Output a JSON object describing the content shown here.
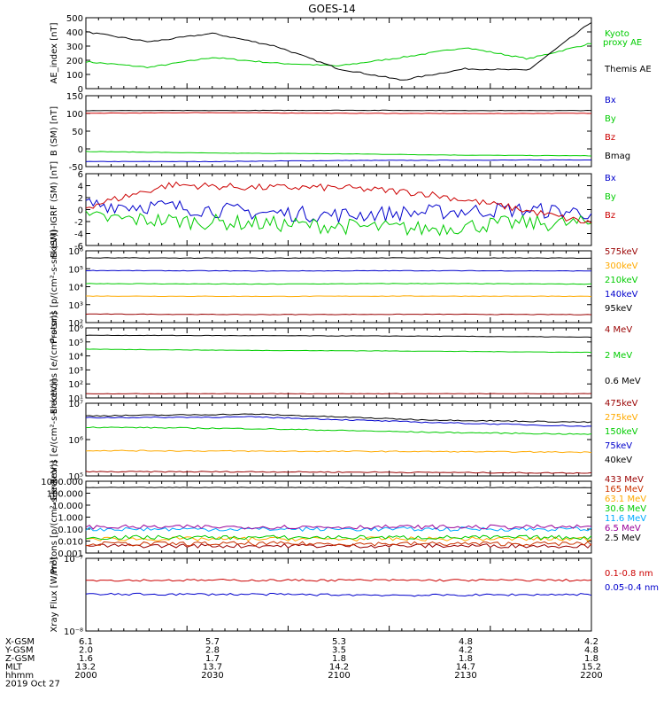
{
  "title": "GOES-14",
  "chart_data": [
    {
      "type": "line",
      "ylabel": "AE_index [nT]",
      "yticks": [
        "500",
        "400",
        "300",
        "200",
        "100",
        "0"
      ],
      "ylim": [
        0,
        500
      ],
      "x": [
        2000,
        2015,
        2030,
        2045,
        2100,
        2115,
        2130,
        2145,
        2200
      ],
      "series": [
        {
          "name": "Kyoto proxy AE",
          "color": "#00cc00",
          "values": [
            190,
            150,
            220,
            180,
            160,
            220,
            290,
            210,
            320
          ]
        },
        {
          "name": "Themis AE",
          "color": "#000000",
          "values": [
            400,
            330,
            390,
            300,
            140,
            60,
            140,
            130,
            470
          ]
        }
      ]
    },
    {
      "type": "line",
      "ylabel": "B (SM) [nT]",
      "yticks": [
        "150",
        "100",
        "50",
        "0",
        "-50"
      ],
      "ylim": [
        -60,
        150
      ],
      "series": [
        {
          "name": "Bx",
          "color": "#0000cc",
          "values": [
            -45,
            -45,
            -42,
            -41,
            -40
          ]
        },
        {
          "name": "By",
          "color": "#00cc00",
          "values": [
            -15,
            -20,
            -22,
            -26,
            -28
          ]
        },
        {
          "name": "Bz",
          "color": "#cc0000",
          "values": [
            98,
            100,
            98,
            97,
            98
          ]
        },
        {
          "name": "Bmag",
          "color": "#000000",
          "values": [
            106,
            106,
            107,
            106,
            106
          ]
        }
      ]
    },
    {
      "type": "line",
      "ylabel": "B (SM)-IGRF (SM) [nT]",
      "yticks": [
        "6",
        "4",
        "2",
        "0",
        "-2",
        "-4",
        "-6"
      ],
      "ylim": [
        -7,
        6
      ],
      "series": [
        {
          "name": "Bx",
          "color": "#0000cc",
          "values": [
            0.5,
            0,
            -1,
            -1.5,
            -1,
            -0.5,
            -1
          ]
        },
        {
          "name": "By",
          "color": "#00cc00",
          "values": [
            -2,
            -2.5,
            -3,
            -3.5,
            -4,
            -3,
            -3
          ]
        },
        {
          "name": "Bz",
          "color": "#cc0000",
          "values": [
            0,
            4,
            3.5,
            3.5,
            2.5,
            0,
            -3
          ]
        }
      ]
    },
    {
      "type": "line",
      "ylabel": "Protons [p/(cm²-s-sr-keV)]",
      "yticks": [
        "10⁶",
        "10⁵",
        "10⁴",
        "10³",
        "10²"
      ],
      "log": true,
      "series": [
        {
          "name": "575keV",
          "color": "#990000",
          "values": [
            300,
            280,
            290,
            280
          ]
        },
        {
          "name": "300keV",
          "color": "#ffaa00",
          "values": [
            3000,
            2900,
            3000,
            2900
          ]
        },
        {
          "name": "210keV",
          "color": "#00cc00",
          "values": [
            15000,
            14000,
            15000,
            14000
          ]
        },
        {
          "name": "140keV",
          "color": "#0000cc",
          "values": [
            80000,
            75000,
            78000,
            75000
          ]
        },
        {
          "name": "95keV",
          "color": "#000000",
          "values": [
            400000,
            390000,
            400000,
            390000
          ]
        }
      ]
    },
    {
      "type": "line",
      "ylabel": "Electrons [e/(cm²-s-sr)]",
      "yticks": [
        "10⁶",
        "10⁵",
        "10⁴",
        "10³",
        "10²",
        "10¹"
      ],
      "log": true,
      "series": [
        {
          "name": "4 MeV",
          "color": "#990000",
          "values": [
            20,
            20,
            20,
            20
          ]
        },
        {
          "name": "2 MeV",
          "color": "#00cc00",
          "values": [
            30000,
            25000,
            22000,
            18000
          ]
        },
        {
          "name": "0.6 MeV",
          "color": "#000000",
          "values": [
            300000,
            280000,
            260000,
            220000
          ]
        }
      ]
    },
    {
      "type": "line",
      "ylabel": "Electrons [e/(cm²-s-sr-keV)]",
      "yticks": [
        "10⁷",
        "10⁶",
        "10⁵"
      ],
      "log": true,
      "series": [
        {
          "name": "475keV",
          "color": "#990000",
          "values": [
            130000,
            130000,
            125000,
            120000
          ]
        },
        {
          "name": "275keV",
          "color": "#ffaa00",
          "values": [
            500000,
            480000,
            470000,
            450000
          ]
        },
        {
          "name": "150keV",
          "color": "#00cc00",
          "values": [
            2200000,
            2000000,
            1600000,
            1400000
          ]
        },
        {
          "name": "75keV",
          "color": "#0000cc",
          "values": [
            4000000,
            4200000,
            3000000,
            2300000
          ]
        },
        {
          "name": "40keV",
          "color": "#000000",
          "values": [
            4500000,
            5000000,
            3500000,
            3000000
          ]
        }
      ]
    },
    {
      "type": "line",
      "ylabel": "Protons [p/(cm²-s-sr-keV)]",
      "yticks": [
        "1000.000",
        "100.000",
        "10.000",
        "1.000",
        "0.100",
        "0.010",
        "0.001"
      ],
      "log": true,
      "series": [
        {
          "name": "433 MeV",
          "color": "#990000",
          "values": [
            0.004,
            0.004,
            0.004,
            0.004
          ]
        },
        {
          "name": "165 MeV",
          "color": "#cc3300",
          "values": [
            0.006,
            0.006,
            0.006,
            0.006
          ]
        },
        {
          "name": "63.1 MeV",
          "color": "#ffaa00",
          "values": [
            0.015,
            0.015,
            0.015,
            0.015
          ]
        },
        {
          "name": "30.6 MeV",
          "color": "#00cc00",
          "values": [
            0.02,
            0.02,
            0.02,
            0.02
          ]
        },
        {
          "name": "11.6 MeV",
          "color": "#00aaff",
          "values": [
            0.1,
            0.1,
            0.1,
            0.1
          ]
        },
        {
          "name": "6.5 MeV",
          "color": "#990099",
          "values": [
            0.15,
            0.15,
            0.15,
            0.15
          ]
        },
        {
          "name": "2.5 MeV",
          "color": "#000000",
          "values": [
            300,
            300,
            300,
            300
          ]
        }
      ]
    },
    {
      "type": "line",
      "ylabel": "Xray Flux [W/m²]",
      "yticks": [
        "10⁻⁷",
        "10⁻⁸"
      ],
      "log": true,
      "series": [
        {
          "name": "0.1-0.8 nm",
          "color": "#cc0000",
          "values": [
            5e-08,
            5e-08,
            5e-08,
            5e-08
          ]
        },
        {
          "name": "0.05-0.4 nm",
          "color": "#0000cc",
          "values": [
            3.2e-08,
            3.2e-08,
            3.1e-08,
            3.2e-08
          ]
        }
      ]
    }
  ],
  "footer": {
    "rows": [
      {
        "label": "X-GSM",
        "values": [
          "6.1",
          "5.7",
          "5.3",
          "4.8",
          "4.2"
        ]
      },
      {
        "label": "Y-GSM",
        "values": [
          "2.0",
          "2.8",
          "3.5",
          "4.2",
          "4.8"
        ]
      },
      {
        "label": "Z-GSM",
        "values": [
          "1.6",
          "1.7",
          "1.8",
          "1.8",
          "1.8"
        ]
      },
      {
        "label": "MLT",
        "values": [
          "13.2",
          "13.7",
          "14.2",
          "14.7",
          "15.2"
        ]
      },
      {
        "label": "hhmm",
        "values": [
          "2000",
          "2030",
          "2100",
          "2130",
          "2200"
        ]
      }
    ],
    "date": "2019 Oct 27"
  }
}
